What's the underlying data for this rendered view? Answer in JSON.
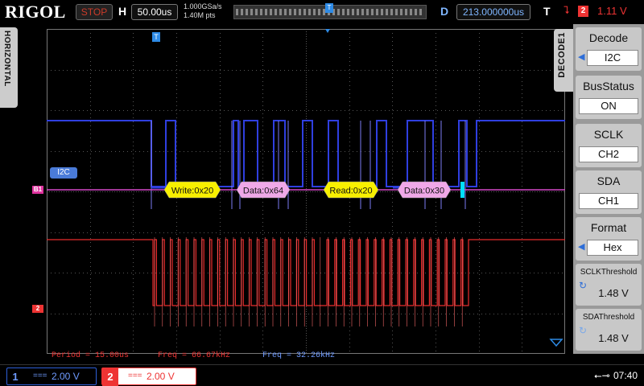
{
  "app": {
    "logo": "RIGOL"
  },
  "topbar": {
    "run_state": "STOP",
    "h_letter": "H",
    "timebase": "50.00us",
    "sample_rate": "1.000GSa/s",
    "mem_depth": "1.40M pts",
    "mem_marker": "T",
    "d_letter": "D",
    "delay": "213.000000us",
    "t_letter": "T",
    "trigger_source": "2",
    "trigger_level": "1.11 V"
  },
  "side": {
    "horizontal_tab": "HORIZONTAL"
  },
  "scope": {
    "bus_label": "I2C",
    "bus_marker": "B1",
    "ch2_marker": "2",
    "trigger_marker": "T",
    "decode_frames": [
      {
        "label": "Write:0x20"
      },
      {
        "label": "Data:0x64"
      },
      {
        "label": "Read:0x20"
      },
      {
        "label": "Data:0x30"
      }
    ],
    "colors": {
      "sda": "#2f3fe0",
      "scl": "#e82c2c",
      "bus": "#d448c8",
      "frame_fill": "#f8f000",
      "data_fill": "#f0a8e8",
      "ack": "#00e0ff",
      "grid": "#555555"
    }
  },
  "measurements": {
    "period": "Period = 15.00us",
    "freq_ch2": "Freq = 66.67kHz",
    "freq_ch1": "Freq = 32.26kHz"
  },
  "menu": {
    "tab": "DECODE1",
    "items": [
      {
        "label": "Decode",
        "value": "I2C"
      },
      {
        "label": "BusStatus",
        "value": "ON"
      },
      {
        "label": "SCLK",
        "value": "CH2"
      },
      {
        "label": "SDA",
        "value": "CH1"
      },
      {
        "label": "Format",
        "value": "Hex"
      },
      {
        "label": "SCLKThreshold",
        "value": "1.48 V"
      },
      {
        "label": "SDAThreshold",
        "value": "1.48 V"
      }
    ]
  },
  "bottombar": {
    "ch1": {
      "num": "1",
      "coupling": "===",
      "scale": "2.00 V"
    },
    "ch2": {
      "num": "2",
      "coupling": "===",
      "scale": "2.00 V"
    },
    "usb_icon": "usb-icon",
    "time": "07:40"
  }
}
